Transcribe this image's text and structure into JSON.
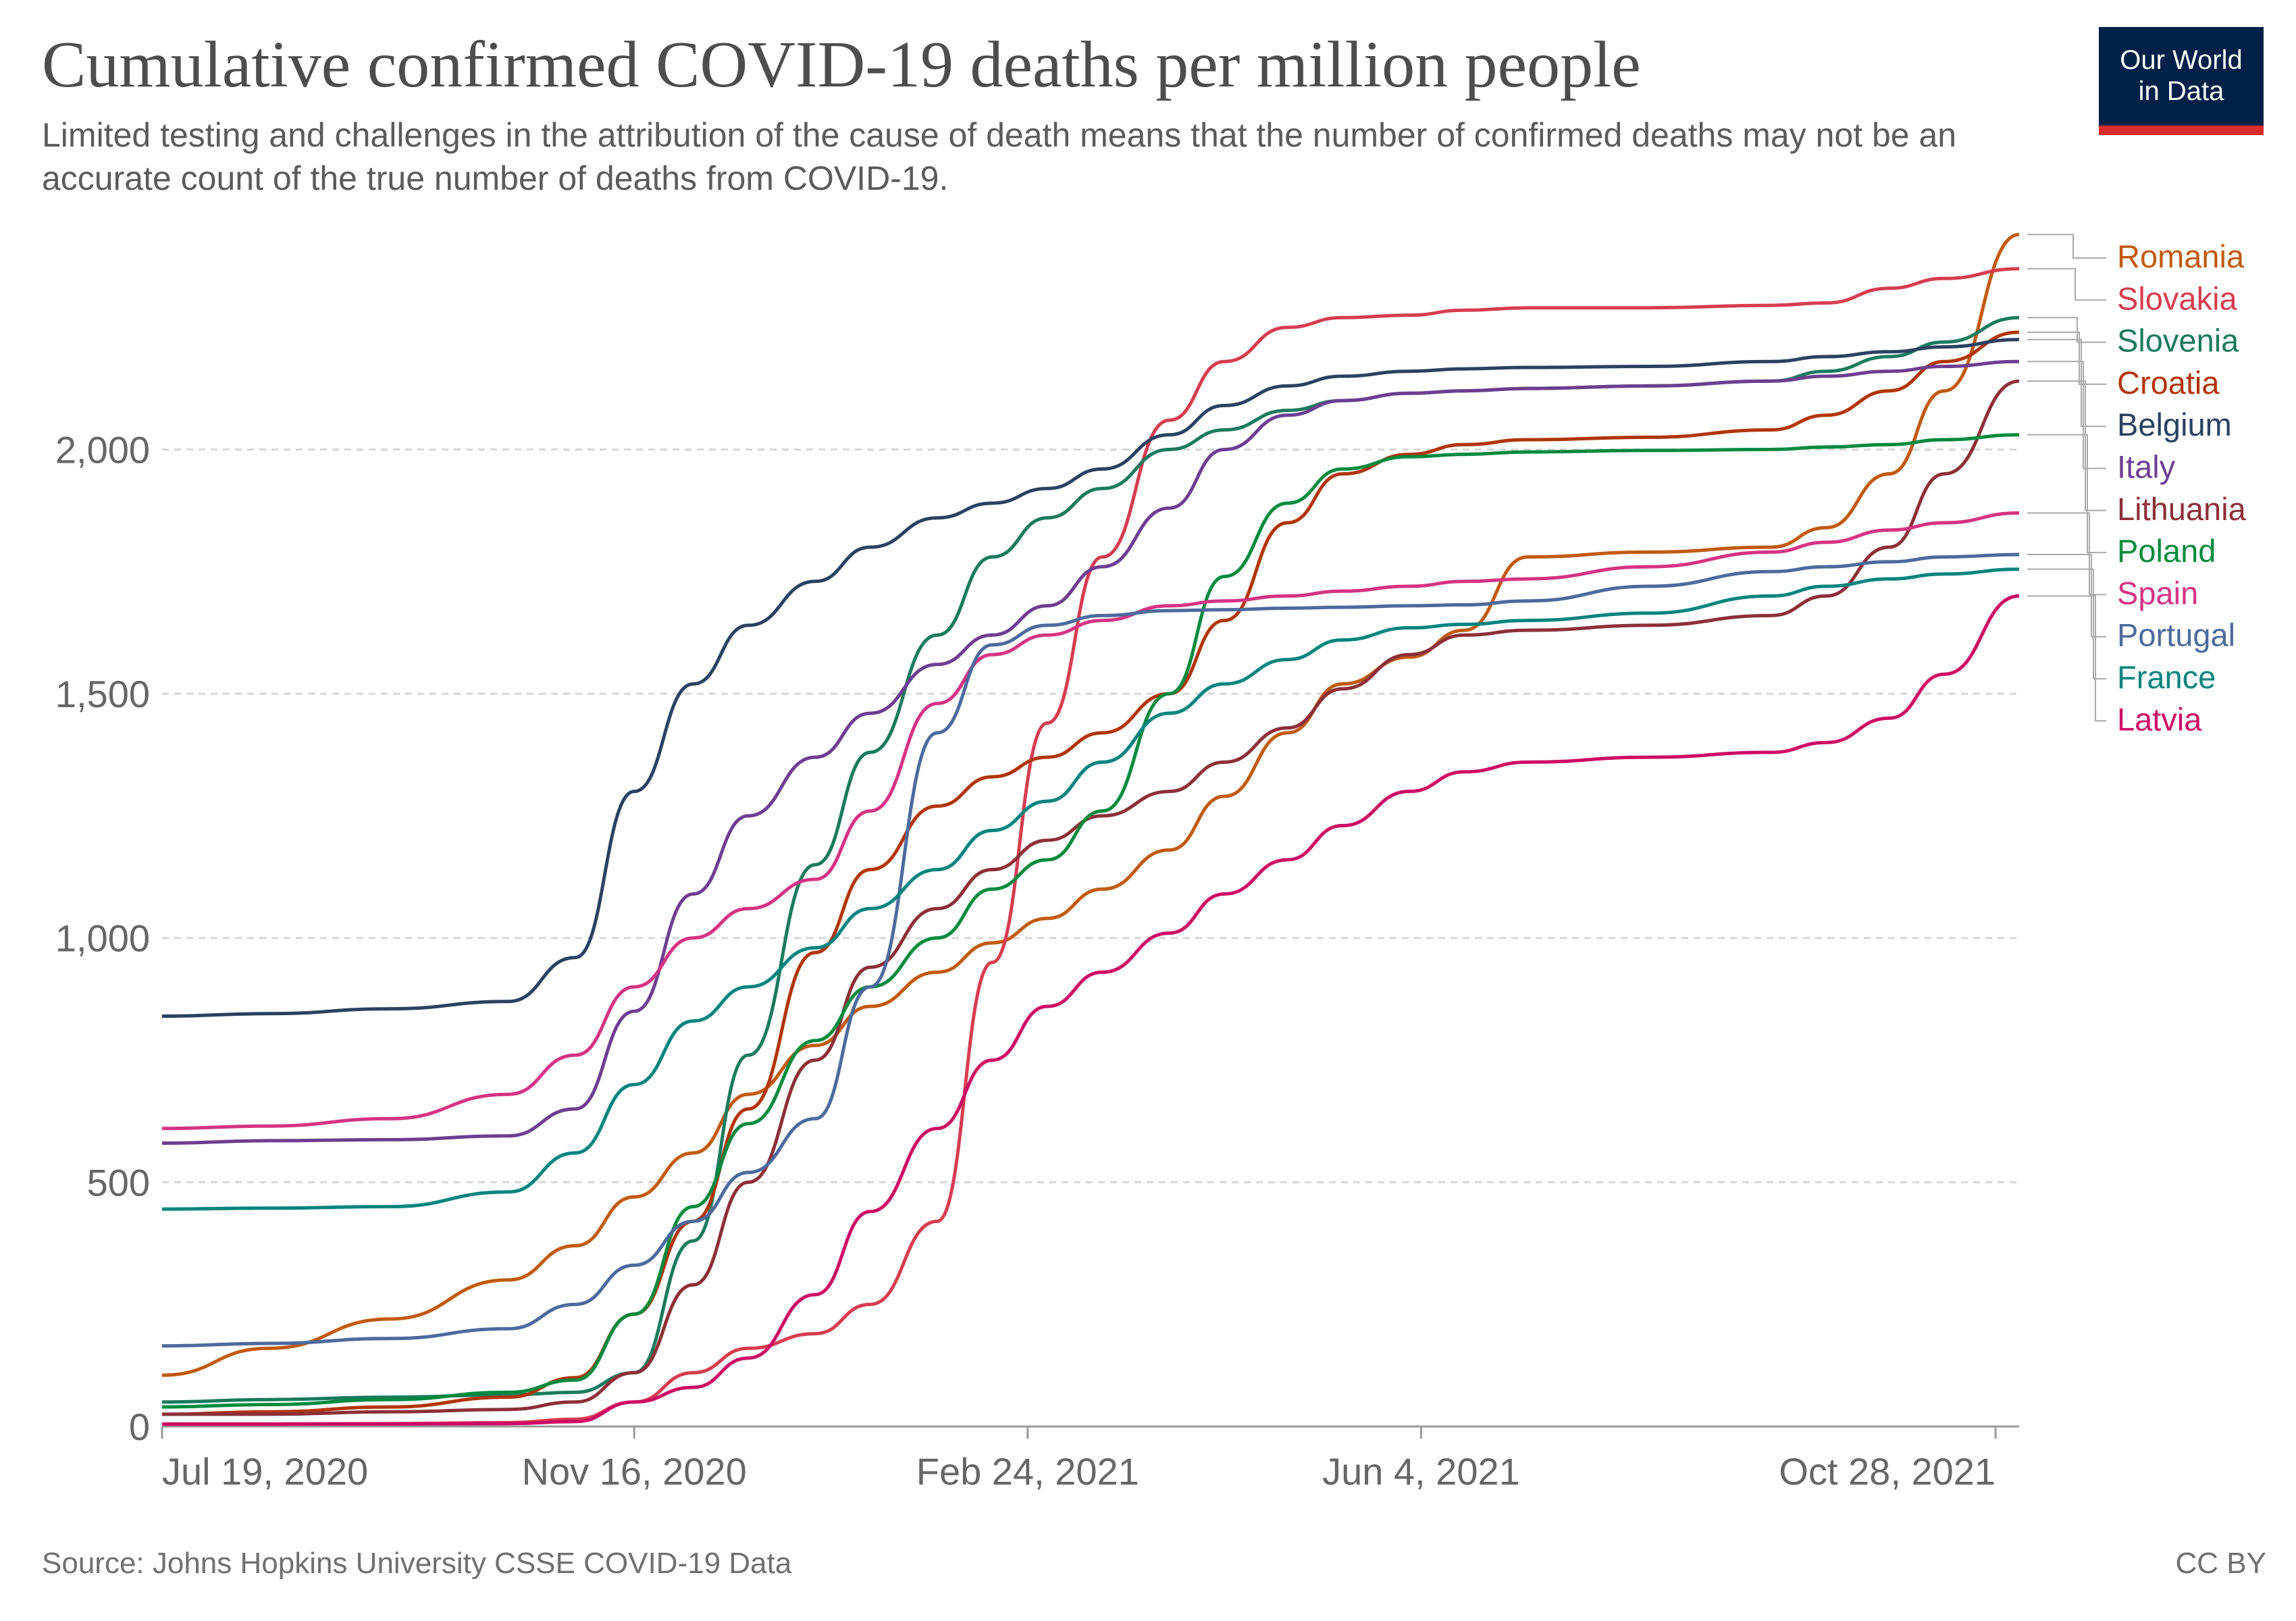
{
  "header": {
    "title": "Cumulative confirmed COVID-19 deaths per million people",
    "subtitle": "Limited testing and challenges in the attribution of the cause of death means that the number of confirmed deaths may not be an accurate count of the true number of deaths from COVID-19."
  },
  "logo": {
    "line1": "Our World",
    "line2": "in Data",
    "bg_color": "#002147",
    "accent_color": "#dc2b2b"
  },
  "footer": {
    "source": "Source: Johns Hopkins University CSSE COVID-19 Data",
    "license": "CC BY"
  },
  "chart_data": {
    "type": "line",
    "title": "Cumulative confirmed COVID-19 deaths per million people",
    "xlabel": "",
    "ylabel": "",
    "x_ticks": [
      "Jul 19, 2020",
      "Nov 16, 2020",
      "Feb 24, 2021",
      "Jun 4, 2021",
      "Oct 28, 2021"
    ],
    "y_ticks": [
      0,
      500,
      1000,
      1500,
      2000
    ],
    "y_tick_labels": [
      "0",
      "500",
      "1,000",
      "1,500",
      "2,000"
    ],
    "ylim": [
      0,
      2450
    ],
    "xlim": [
      "2020-07-19",
      "2021-11-03"
    ],
    "grid": "horizontal dashed",
    "legend": "right, labels at line ends",
    "x": [
      "2020-07-19",
      "2020-08-15",
      "2020-09-15",
      "2020-10-15",
      "2020-11-01",
      "2020-11-16",
      "2020-12-01",
      "2020-12-15",
      "2021-01-01",
      "2021-01-15",
      "2021-02-01",
      "2021-02-15",
      "2021-03-01",
      "2021-03-15",
      "2021-04-01",
      "2021-04-15",
      "2021-05-01",
      "2021-05-15",
      "2021-06-01",
      "2021-06-15",
      "2021-07-01",
      "2021-08-01",
      "2021-09-01",
      "2021-09-15",
      "2021-10-01",
      "2021-10-15",
      "2021-11-03"
    ],
    "series": [
      {
        "name": "Romania",
        "color": "#c15a0e",
        "values": [
          105,
          160,
          220,
          300,
          370,
          470,
          560,
          680,
          780,
          860,
          930,
          990,
          1040,
          1100,
          1180,
          1290,
          1420,
          1520,
          1575,
          1630,
          1780,
          1790,
          1800,
          1840,
          1950,
          2120,
          2440
        ]
      },
      {
        "name": "Slovakia",
        "color": "#d73c50",
        "values": [
          5,
          5,
          6,
          8,
          15,
          50,
          110,
          160,
          190,
          250,
          420,
          950,
          1440,
          1780,
          2060,
          2180,
          2250,
          2270,
          2275,
          2285,
          2290,
          2290,
          2295,
          2300,
          2330,
          2350,
          2370
        ]
      },
      {
        "name": "Slovenia",
        "color": "#1a7a5e",
        "values": [
          50,
          55,
          60,
          65,
          70,
          110,
          380,
          760,
          1150,
          1380,
          1620,
          1780,
          1860,
          1920,
          2000,
          2040,
          2080,
          2100,
          2115,
          2120,
          2125,
          2130,
          2140,
          2160,
          2190,
          2220,
          2270
        ]
      },
      {
        "name": "Croatia",
        "color": "#b13507",
        "values": [
          25,
          30,
          40,
          60,
          100,
          230,
          420,
          650,
          970,
          1140,
          1270,
          1330,
          1370,
          1420,
          1500,
          1650,
          1850,
          1950,
          1990,
          2010,
          2020,
          2025,
          2040,
          2070,
          2120,
          2180,
          2240
        ]
      },
      {
        "name": "Belgium",
        "color": "#2b4162",
        "values": [
          840,
          845,
          855,
          870,
          960,
          1300,
          1520,
          1640,
          1730,
          1800,
          1860,
          1890,
          1920,
          1960,
          2030,
          2090,
          2130,
          2150,
          2160,
          2165,
          2168,
          2170,
          2180,
          2190,
          2200,
          2210,
          2225
        ]
      },
      {
        "name": "Italy",
        "color": "#6d3e91",
        "values": [
          580,
          585,
          587,
          595,
          650,
          850,
          1090,
          1250,
          1370,
          1460,
          1560,
          1620,
          1680,
          1760,
          1880,
          2000,
          2070,
          2100,
          2115,
          2120,
          2125,
          2130,
          2140,
          2150,
          2160,
          2170,
          2180
        ]
      },
      {
        "name": "Lithuania",
        "color": "#8c2f39",
        "values": [
          25,
          25,
          30,
          35,
          50,
          110,
          290,
          500,
          750,
          940,
          1060,
          1140,
          1200,
          1250,
          1300,
          1360,
          1430,
          1510,
          1580,
          1620,
          1630,
          1640,
          1660,
          1700,
          1800,
          1950,
          2140
        ]
      },
      {
        "name": "Poland",
        "color": "#008a3e",
        "values": [
          40,
          45,
          55,
          70,
          95,
          230,
          450,
          620,
          790,
          900,
          1000,
          1100,
          1160,
          1260,
          1500,
          1740,
          1890,
          1960,
          1985,
          1990,
          1995,
          1998,
          2000,
          2005,
          2010,
          2020,
          2030
        ]
      },
      {
        "name": "Spain",
        "color": "#d63384",
        "values": [
          610,
          615,
          630,
          680,
          760,
          900,
          1000,
          1060,
          1120,
          1260,
          1480,
          1580,
          1620,
          1650,
          1680,
          1690,
          1700,
          1710,
          1720,
          1730,
          1735,
          1760,
          1790,
          1810,
          1835,
          1850,
          1870
        ]
      },
      {
        "name": "Portugal",
        "color": "#4c6a9c",
        "values": [
          165,
          170,
          180,
          200,
          250,
          330,
          420,
          520,
          630,
          900,
          1420,
          1600,
          1640,
          1660,
          1670,
          1672,
          1675,
          1677,
          1680,
          1682,
          1690,
          1720,
          1750,
          1760,
          1770,
          1780,
          1785
        ]
      },
      {
        "name": "France",
        "color": "#00847e",
        "values": [
          445,
          447,
          450,
          480,
          560,
          700,
          830,
          900,
          980,
          1060,
          1140,
          1220,
          1280,
          1360,
          1460,
          1520,
          1570,
          1610,
          1635,
          1642,
          1650,
          1665,
          1700,
          1720,
          1735,
          1745,
          1755
        ]
      },
      {
        "name": "Latvia",
        "color": "#cf0a66",
        "values": [
          5,
          5,
          5,
          6,
          10,
          50,
          80,
          140,
          270,
          440,
          610,
          750,
          860,
          930,
          1010,
          1090,
          1160,
          1230,
          1300,
          1340,
          1360,
          1370,
          1380,
          1400,
          1450,
          1540,
          1700
        ]
      }
    ]
  }
}
